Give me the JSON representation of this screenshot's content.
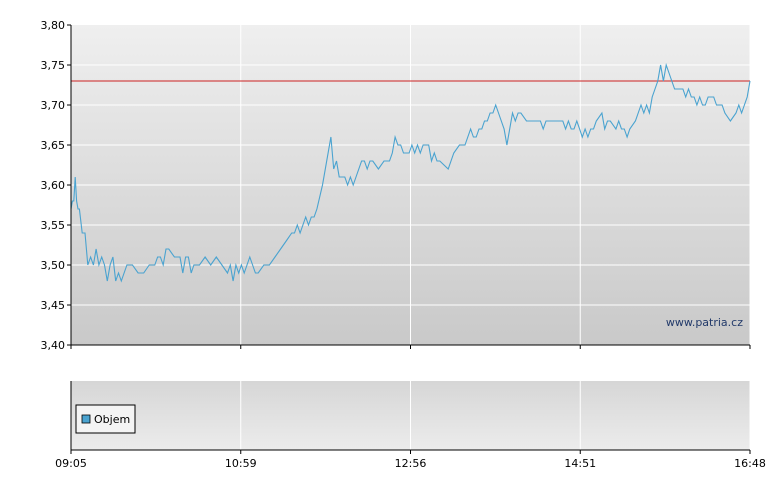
{
  "chart_data": {
    "type": "line",
    "watermark": "www.patria.cz",
    "y_ticks": [
      "3,40",
      "3,45",
      "3,50",
      "3,55",
      "3,60",
      "3,65",
      "3,70",
      "3,75",
      "3,80"
    ],
    "x_ticks": [
      "09:05",
      "10:59",
      "12:56",
      "14:51",
      "16:48"
    ],
    "ylim": [
      3.4,
      3.8
    ],
    "grid": true,
    "reference_line": {
      "value": 3.73,
      "color": "#cc2222"
    },
    "series": [
      {
        "color": "#4aa3d0",
        "points": [
          [
            0,
            3.57
          ],
          [
            0.5,
            3.58
          ],
          [
            1,
            3.58
          ],
          [
            1.5,
            3.61
          ],
          [
            2,
            3.58
          ],
          [
            2.5,
            3.57
          ],
          [
            3,
            3.57
          ],
          [
            4,
            3.54
          ],
          [
            5,
            3.54
          ],
          [
            6,
            3.5
          ],
          [
            7,
            3.51
          ],
          [
            8,
            3.5
          ],
          [
            9,
            3.52
          ],
          [
            10,
            3.5
          ],
          [
            11,
            3.51
          ],
          [
            12,
            3.5
          ],
          [
            13,
            3.48
          ],
          [
            14,
            3.5
          ],
          [
            15,
            3.51
          ],
          [
            16,
            3.48
          ],
          [
            17,
            3.49
          ],
          [
            18,
            3.48
          ],
          [
            19,
            3.49
          ],
          [
            20,
            3.5
          ],
          [
            22,
            3.5
          ],
          [
            24,
            3.49
          ],
          [
            26,
            3.49
          ],
          [
            28,
            3.5
          ],
          [
            30,
            3.5
          ],
          [
            31,
            3.51
          ],
          [
            32,
            3.51
          ],
          [
            33,
            3.5
          ],
          [
            34,
            3.52
          ],
          [
            35,
            3.52
          ],
          [
            37,
            3.51
          ],
          [
            39,
            3.51
          ],
          [
            40,
            3.49
          ],
          [
            41,
            3.51
          ],
          [
            42,
            3.51
          ],
          [
            43,
            3.49
          ],
          [
            44,
            3.5
          ],
          [
            46,
            3.5
          ],
          [
            48,
            3.51
          ],
          [
            50,
            3.5
          ],
          [
            52,
            3.51
          ],
          [
            54,
            3.5
          ],
          [
            56,
            3.49
          ],
          [
            57,
            3.5
          ],
          [
            58,
            3.48
          ],
          [
            59,
            3.5
          ],
          [
            60,
            3.49
          ],
          [
            61,
            3.5
          ],
          [
            62,
            3.49
          ],
          [
            63,
            3.5
          ],
          [
            64,
            3.51
          ],
          [
            65,
            3.5
          ],
          [
            66,
            3.49
          ],
          [
            67,
            3.49
          ],
          [
            69,
            3.5
          ],
          [
            71,
            3.5
          ],
          [
            73,
            3.51
          ],
          [
            75,
            3.52
          ],
          [
            77,
            3.53
          ],
          [
            79,
            3.54
          ],
          [
            80,
            3.54
          ],
          [
            81,
            3.55
          ],
          [
            82,
            3.54
          ],
          [
            83,
            3.55
          ],
          [
            84,
            3.56
          ],
          [
            85,
            3.55
          ],
          [
            86,
            3.56
          ],
          [
            87,
            3.56
          ],
          [
            88,
            3.57
          ],
          [
            90,
            3.6
          ],
          [
            91,
            3.62
          ],
          [
            92,
            3.64
          ],
          [
            93,
            3.66
          ],
          [
            94,
            3.62
          ],
          [
            95,
            3.63
          ],
          [
            96,
            3.61
          ],
          [
            97,
            3.61
          ],
          [
            98,
            3.61
          ],
          [
            99,
            3.6
          ],
          [
            100,
            3.61
          ],
          [
            101,
            3.6
          ],
          [
            102,
            3.61
          ],
          [
            103,
            3.62
          ],
          [
            104,
            3.63
          ],
          [
            105,
            3.63
          ],
          [
            106,
            3.62
          ],
          [
            107,
            3.63
          ],
          [
            108,
            3.63
          ],
          [
            110,
            3.62
          ],
          [
            112,
            3.63
          ],
          [
            113,
            3.63
          ],
          [
            114,
            3.63
          ],
          [
            115,
            3.64
          ],
          [
            116,
            3.66
          ],
          [
            117,
            3.65
          ],
          [
            118,
            3.65
          ],
          [
            119,
            3.64
          ],
          [
            121,
            3.64
          ],
          [
            122,
            3.65
          ],
          [
            123,
            3.64
          ],
          [
            124,
            3.65
          ],
          [
            125,
            3.64
          ],
          [
            126,
            3.65
          ],
          [
            128,
            3.65
          ],
          [
            129,
            3.63
          ],
          [
            130,
            3.64
          ],
          [
            131,
            3.63
          ],
          [
            132,
            3.63
          ],
          [
            135,
            3.62
          ],
          [
            137,
            3.64
          ],
          [
            139,
            3.65
          ],
          [
            141,
            3.65
          ],
          [
            142,
            3.66
          ],
          [
            143,
            3.67
          ],
          [
            144,
            3.66
          ],
          [
            145,
            3.66
          ],
          [
            146,
            3.67
          ],
          [
            147,
            3.67
          ],
          [
            148,
            3.68
          ],
          [
            149,
            3.68
          ],
          [
            150,
            3.69
          ],
          [
            151,
            3.69
          ],
          [
            152,
            3.7
          ],
          [
            153,
            3.69
          ],
          [
            154,
            3.68
          ],
          [
            155,
            3.67
          ],
          [
            156,
            3.65
          ],
          [
            157,
            3.67
          ],
          [
            158,
            3.69
          ],
          [
            159,
            3.68
          ],
          [
            160,
            3.69
          ],
          [
            161,
            3.69
          ],
          [
            163,
            3.68
          ],
          [
            165,
            3.68
          ],
          [
            167,
            3.68
          ],
          [
            168,
            3.68
          ],
          [
            169,
            3.67
          ],
          [
            170,
            3.68
          ],
          [
            172,
            3.68
          ],
          [
            174,
            3.68
          ],
          [
            176,
            3.68
          ],
          [
            177,
            3.67
          ],
          [
            178,
            3.68
          ],
          [
            179,
            3.67
          ],
          [
            180,
            3.67
          ],
          [
            181,
            3.68
          ],
          [
            182,
            3.67
          ],
          [
            183,
            3.66
          ],
          [
            184,
            3.67
          ],
          [
            185,
            3.66
          ],
          [
            186,
            3.67
          ],
          [
            187,
            3.67
          ],
          [
            188,
            3.68
          ],
          [
            190,
            3.69
          ],
          [
            191,
            3.67
          ],
          [
            192,
            3.68
          ],
          [
            193,
            3.68
          ],
          [
            195,
            3.67
          ],
          [
            196,
            3.68
          ],
          [
            197,
            3.67
          ],
          [
            198,
            3.67
          ],
          [
            199,
            3.66
          ],
          [
            200,
            3.67
          ],
          [
            202,
            3.68
          ],
          [
            203,
            3.69
          ],
          [
            204,
            3.7
          ],
          [
            205,
            3.69
          ],
          [
            206,
            3.7
          ],
          [
            207,
            3.69
          ],
          [
            208,
            3.71
          ],
          [
            209,
            3.72
          ],
          [
            210,
            3.73
          ],
          [
            211,
            3.75
          ],
          [
            212,
            3.73
          ],
          [
            213,
            3.75
          ],
          [
            214,
            3.74
          ],
          [
            215,
            3.73
          ],
          [
            216,
            3.72
          ],
          [
            218,
            3.72
          ],
          [
            219,
            3.72
          ],
          [
            220,
            3.71
          ],
          [
            221,
            3.72
          ],
          [
            222,
            3.71
          ],
          [
            223,
            3.71
          ],
          [
            224,
            3.7
          ],
          [
            225,
            3.71
          ],
          [
            226,
            3.7
          ],
          [
            227,
            3.7
          ],
          [
            228,
            3.71
          ],
          [
            230,
            3.71
          ],
          [
            231,
            3.7
          ],
          [
            233,
            3.7
          ],
          [
            234,
            3.69
          ],
          [
            236,
            3.68
          ],
          [
            238,
            3.69
          ],
          [
            239,
            3.7
          ],
          [
            240,
            3.69
          ],
          [
            241,
            3.7
          ],
          [
            242,
            3.71
          ],
          [
            243,
            3.73
          ]
        ]
      }
    ],
    "volume_panel": {
      "legend_label": "Objem",
      "legend_color": "#4aa3d0"
    }
  }
}
